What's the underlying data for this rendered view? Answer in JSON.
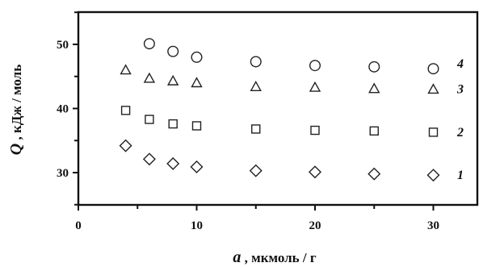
{
  "chart_data": {
    "type": "scatter",
    "xlabel": {
      "var": "a",
      "rest": " , мкмоль / г"
    },
    "ylabel": {
      "var": "Q",
      "rest": " , кДж / моль"
    },
    "xlim": [
      0,
      35
    ],
    "ylim": [
      25,
      55
    ],
    "x_ticks": [
      0,
      10,
      20,
      30
    ],
    "y_ticks": [
      30,
      40,
      50
    ],
    "x_minor": [
      5,
      15,
      25,
      35
    ],
    "y_minor": [
      25,
      35,
      45,
      55
    ],
    "grid": false,
    "series": [
      {
        "name": "1",
        "marker": "diamond",
        "x": [
          4,
          6,
          8,
          10,
          15,
          20,
          25,
          30
        ],
        "y": [
          34.2,
          32.1,
          31.4,
          30.9,
          30.3,
          30.1,
          29.8,
          29.6
        ]
      },
      {
        "name": "2",
        "marker": "square",
        "x": [
          4,
          6,
          8,
          10,
          15,
          20,
          25,
          30
        ],
        "y": [
          39.7,
          38.3,
          37.6,
          37.3,
          36.8,
          36.6,
          36.5,
          36.3
        ]
      },
      {
        "name": "3",
        "marker": "triangle",
        "x": [
          4,
          6,
          8,
          10,
          15,
          20,
          25,
          30
        ],
        "y": [
          46.0,
          44.7,
          44.3,
          44.0,
          43.4,
          43.3,
          43.1,
          43.0
        ]
      },
      {
        "name": "4",
        "marker": "circle",
        "x": [
          6,
          8,
          10,
          15,
          20,
          25,
          30
        ],
        "y": [
          50.1,
          48.9,
          48.0,
          47.3,
          46.7,
          46.5,
          46.2
        ]
      }
    ]
  }
}
